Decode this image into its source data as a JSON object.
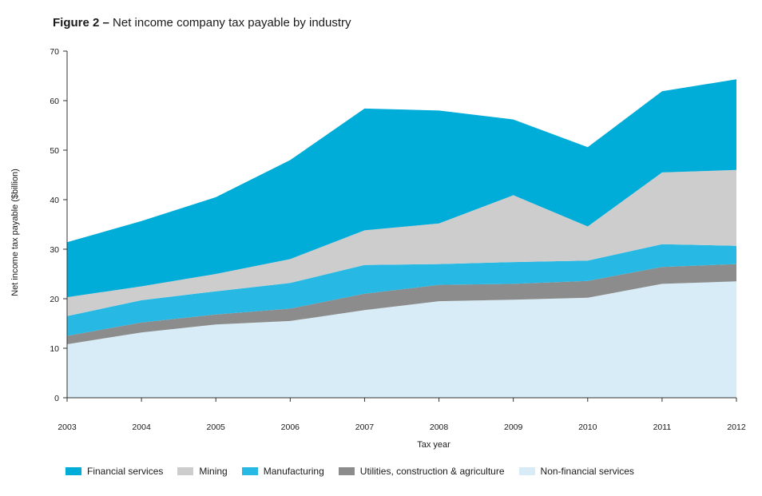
{
  "title": {
    "prefix": "Figure 2 –",
    "text": "Net income company tax payable by industry"
  },
  "chart_data": {
    "type": "area",
    "stacked": true,
    "x": [
      "2003",
      "2004",
      "2005",
      "2006",
      "2007",
      "2008",
      "2009",
      "2010",
      "2011",
      "2012"
    ],
    "xlabel": "Tax year",
    "ylabel": "Net income tax payable ($billion)",
    "ylim": [
      0,
      70
    ],
    "yticks": [
      0,
      10,
      20,
      30,
      40,
      50,
      60,
      70
    ],
    "series": [
      {
        "name": "Non-financial services",
        "color": "#d7ecf6",
        "values": [
          10.8,
          13.2,
          14.8,
          15.5,
          17.7,
          19.5,
          19.8,
          20.2,
          23.0,
          23.5
        ]
      },
      {
        "name": "Utilities, construction & agriculture",
        "color": "#8c8c8c",
        "values": [
          1.7,
          2.0,
          2.0,
          2.5,
          3.3,
          3.3,
          3.2,
          3.4,
          3.4,
          3.5
        ]
      },
      {
        "name": "Manufacturing",
        "color": "#28b8e4",
        "values": [
          4.0,
          4.5,
          4.7,
          5.2,
          5.8,
          4.2,
          4.4,
          4.1,
          4.6,
          3.7
        ]
      },
      {
        "name": "Mining",
        "color": "#cdcdcd",
        "values": [
          3.8,
          2.8,
          3.5,
          4.8,
          7.0,
          8.2,
          13.5,
          6.9,
          14.5,
          15.3
        ]
      },
      {
        "name": "Financial services",
        "color": "#00acd8",
        "values": [
          11.1,
          13.2,
          15.5,
          20.0,
          24.6,
          22.8,
          15.3,
          16.0,
          16.4,
          18.3
        ]
      }
    ],
    "legend_order": [
      "Financial services",
      "Mining",
      "Manufacturing",
      "Utilities, construction & agriculture",
      "Non-financial services"
    ],
    "legend_position": "bottom",
    "grid": false
  }
}
